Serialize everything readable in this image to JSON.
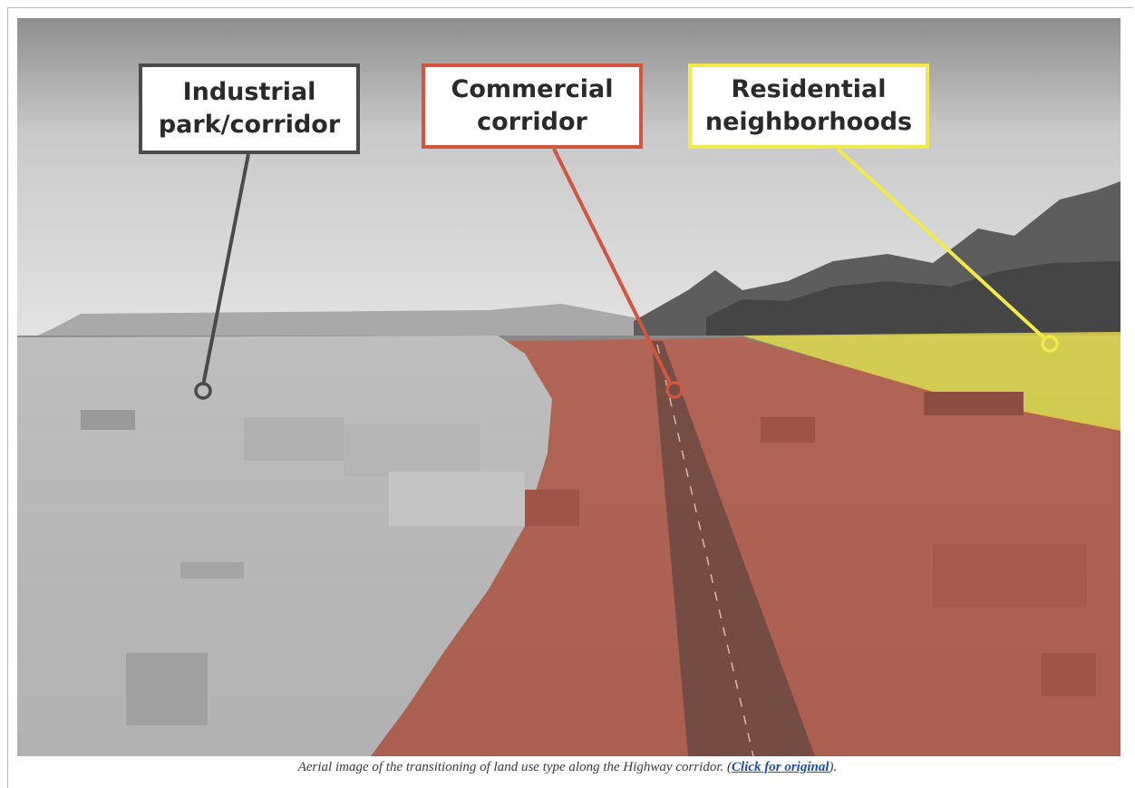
{
  "labels": {
    "industrial": "Industrial\npark/corridor",
    "commercial": "Commercial\ncorridor",
    "residential": "Residential\nneighborhoods"
  },
  "caption": {
    "text": "Aerial image of the transitioning of land use type along the Highway corridor.",
    "paren_open": "(",
    "link_text": "Click for original",
    "paren_close": ")."
  },
  "colors": {
    "industrial": "#4a4a4a",
    "commercial": "#d0563e",
    "residential": "#f2e94b"
  }
}
